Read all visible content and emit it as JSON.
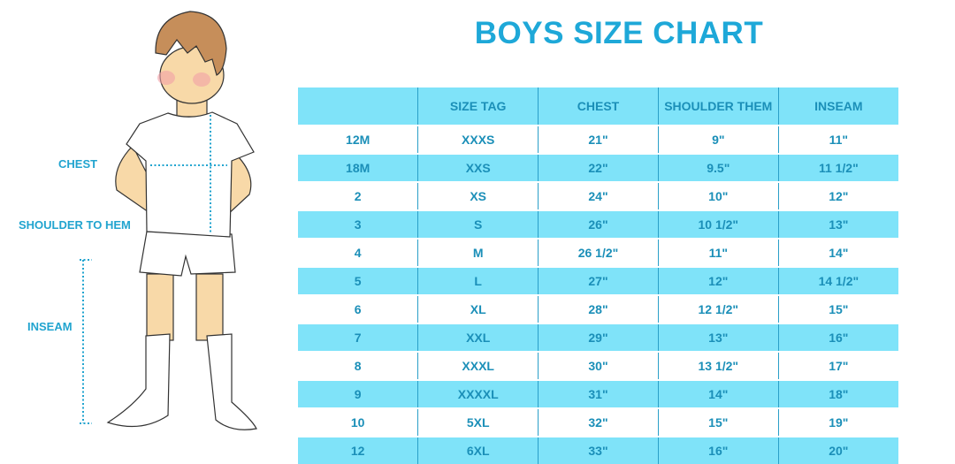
{
  "title": "BOYS SIZE CHART",
  "figure_labels": {
    "chest": "CHEST",
    "shoulder_to_hem": "SHOULDER TO HEM",
    "inseam": "INSEAM"
  },
  "colors": {
    "accent": "#1ea8d8",
    "row_band": "#7fe3f9",
    "text": "#1b8fb8"
  },
  "table": {
    "headers": [
      "",
      "SIZE TAG",
      "CHEST",
      "SHOULDER THEM",
      "INSEAM"
    ],
    "rows": [
      [
        "12M",
        "XXXS",
        "21\"",
        "9\"",
        "11\""
      ],
      [
        "18M",
        "XXS",
        "22\"",
        "9.5\"",
        "11 1/2\""
      ],
      [
        "2",
        "XS",
        "24\"",
        "10\"",
        "12\""
      ],
      [
        "3",
        "S",
        "26\"",
        "10 1/2\"",
        "13\""
      ],
      [
        "4",
        "M",
        "26 1/2\"",
        "11\"",
        "14\""
      ],
      [
        "5",
        "L",
        "27\"",
        "12\"",
        "14 1/2\""
      ],
      [
        "6",
        "XL",
        "28\"",
        "12 1/2\"",
        "15\""
      ],
      [
        "7",
        "XXL",
        "29\"",
        "13\"",
        "16\""
      ],
      [
        "8",
        "XXXL",
        "30\"",
        "13 1/2\"",
        "17\""
      ],
      [
        "9",
        "XXXXL",
        "31\"",
        "14\"",
        "18\""
      ],
      [
        "10",
        "5XL",
        "32\"",
        "15\"",
        "19\""
      ],
      [
        "12",
        "6XL",
        "33\"",
        "16\"",
        "20\""
      ]
    ]
  }
}
